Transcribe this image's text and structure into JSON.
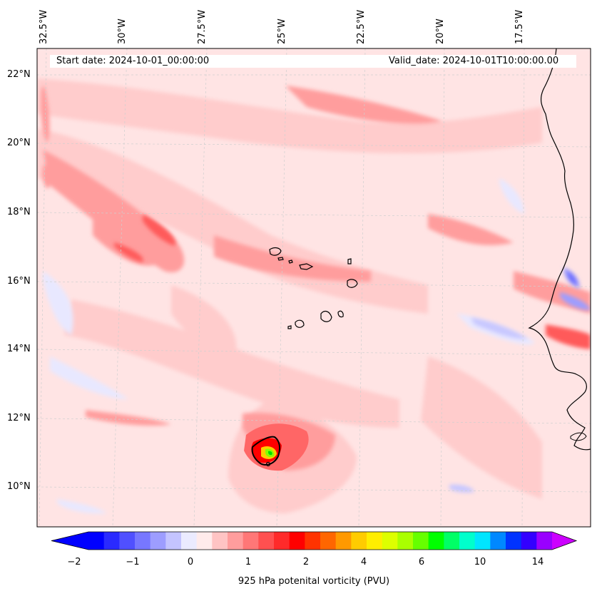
{
  "header": {
    "start_date": "Start date: 2024-10-01_00:00:00",
    "valid_date": "Valid_date: 2024-10-01T10:00:00.00"
  },
  "axes": {
    "lon_labels": [
      "32.5°W",
      "30°W",
      "27.5°W",
      "25°W",
      "22.5°W",
      "20°W",
      "17.5°W"
    ],
    "lat_labels": [
      "22°N",
      "20°N",
      "18°N",
      "16°N",
      "14°N",
      "12°N",
      "10°N"
    ]
  },
  "colorbar": {
    "title": "925 hPa potenital vorticity (PVU)",
    "ticks": [
      "−2",
      "−1",
      "0",
      "1",
      "2",
      "4",
      "6",
      "10",
      "14"
    ],
    "colors": [
      "#0000ff",
      "#2a2aff",
      "#5050ff",
      "#7777ff",
      "#9d9dff",
      "#c4c4ff",
      "#ebebff",
      "#ffebeb",
      "#ffc4c4",
      "#ff9d9d",
      "#ff7777",
      "#ff5050",
      "#ff2a2a",
      "#ff0000",
      "#ff3300",
      "#ff6600",
      "#ff9900",
      "#ffcc00",
      "#ffee00",
      "#ddff00",
      "#aaff00",
      "#66ff00",
      "#00ff00",
      "#00ff66",
      "#00ffcc",
      "#00e5ff",
      "#0088ff",
      "#0033ff",
      "#3300ff",
      "#9900ff"
    ],
    "extend_low_color": "#0000ff",
    "extend_high_color": "#cc00ff"
  },
  "map": {
    "background_color": "#ffe6e6",
    "coastline_color": "#000000"
  }
}
